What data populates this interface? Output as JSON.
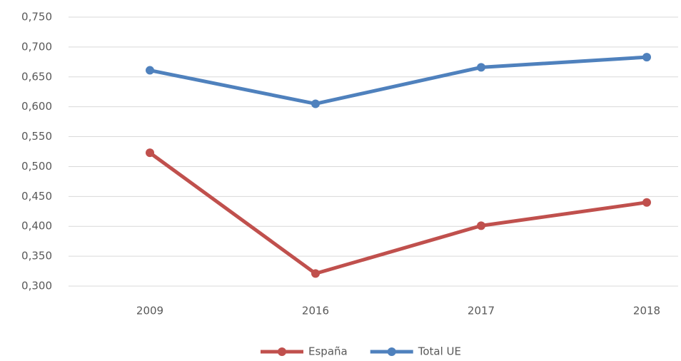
{
  "chart_data": {
    "type": "line",
    "categories": [
      "2009",
      "2016",
      "2017",
      "2018"
    ],
    "series": [
      {
        "name": "España",
        "color": "#c0504d",
        "values": [
          0.523,
          0.321,
          0.401,
          0.44
        ]
      },
      {
        "name": "Total UE",
        "color": "#4f81bd",
        "values": [
          0.661,
          0.605,
          0.666,
          0.683
        ]
      }
    ],
    "ylim": [
      0.3,
      0.75
    ],
    "yticks": [
      {
        "value": 0.3,
        "label": "0,300"
      },
      {
        "value": 0.35,
        "label": "0,350"
      },
      {
        "value": 0.4,
        "label": "0,400"
      },
      {
        "value": 0.45,
        "label": "0,450"
      },
      {
        "value": 0.5,
        "label": "0,500"
      },
      {
        "value": 0.55,
        "label": "0,550"
      },
      {
        "value": 0.6,
        "label": "0,600"
      },
      {
        "value": 0.65,
        "label": "0,650"
      },
      {
        "value": 0.7,
        "label": "0,700"
      },
      {
        "value": 0.75,
        "label": "0,750"
      }
    ],
    "grid": true,
    "legend": "bottom"
  }
}
